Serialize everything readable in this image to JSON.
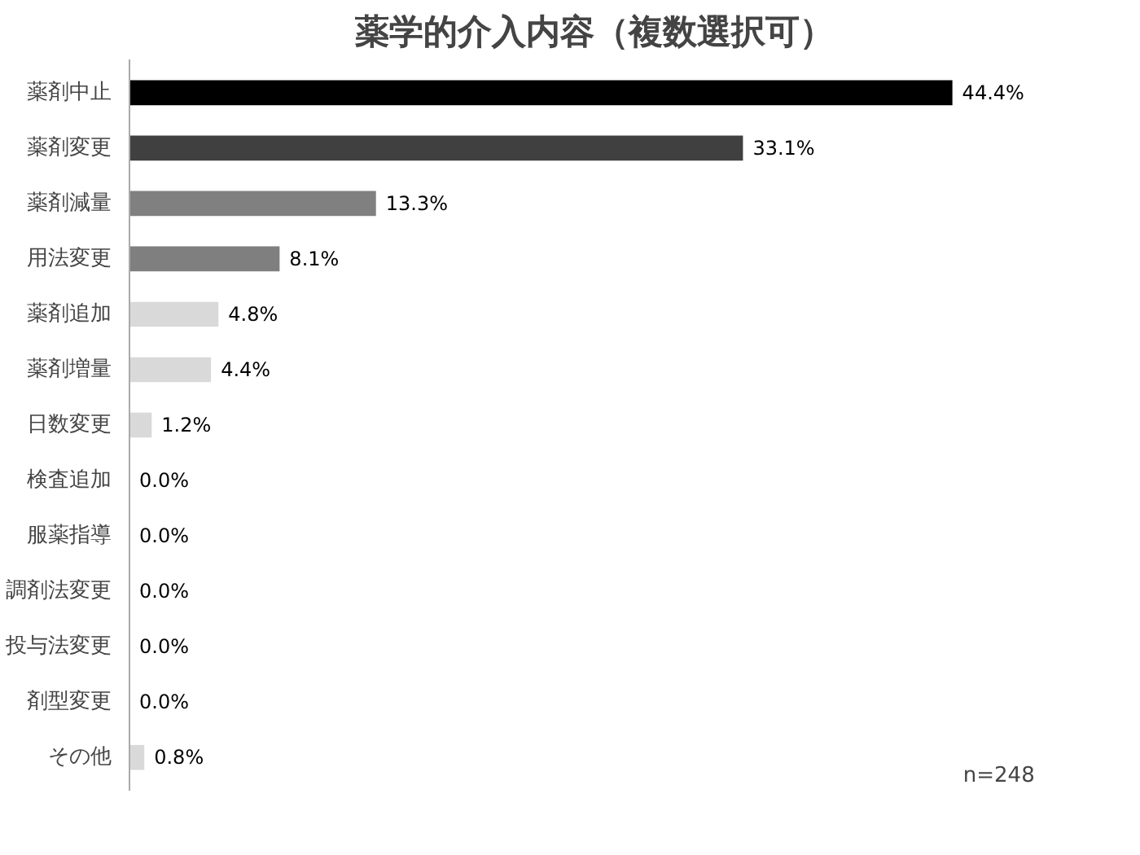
{
  "chart_data": {
    "type": "bar",
    "orientation": "horizontal",
    "title": "薬学的介入内容（複数選択可）",
    "categories": [
      "薬剤中止",
      "薬剤変更",
      "薬剤減量",
      "用法変更",
      "薬剤追加",
      "薬剤増量",
      "日数変更",
      "検査追加",
      "服薬指導",
      "調剤法変更",
      "投与法変更",
      "剤型変更",
      "その他"
    ],
    "values": [
      44.4,
      33.1,
      13.3,
      8.1,
      4.8,
      4.4,
      1.2,
      0.0,
      0.0,
      0.0,
      0.0,
      0.0,
      0.8
    ],
    "colors": [
      "#000000",
      "#404040",
      "#808080",
      "#7f7f7f",
      "#d9d9d9",
      "#d9d9d9",
      "#d9d9d9",
      "#d9d9d9",
      "#d9d9d9",
      "#d9d9d9",
      "#d9d9d9",
      "#d9d9d9",
      "#d9d9d9"
    ],
    "value_labels": [
      "44.4%",
      "33.1%",
      "13.3%",
      "8.1%",
      "4.8%",
      "4.4%",
      "1.2%",
      "0.0%",
      "0.0%",
      "0.0%",
      "0.0%",
      "0.0%",
      "0.8%"
    ],
    "grid": false,
    "annotations": [
      "n=248"
    ]
  }
}
